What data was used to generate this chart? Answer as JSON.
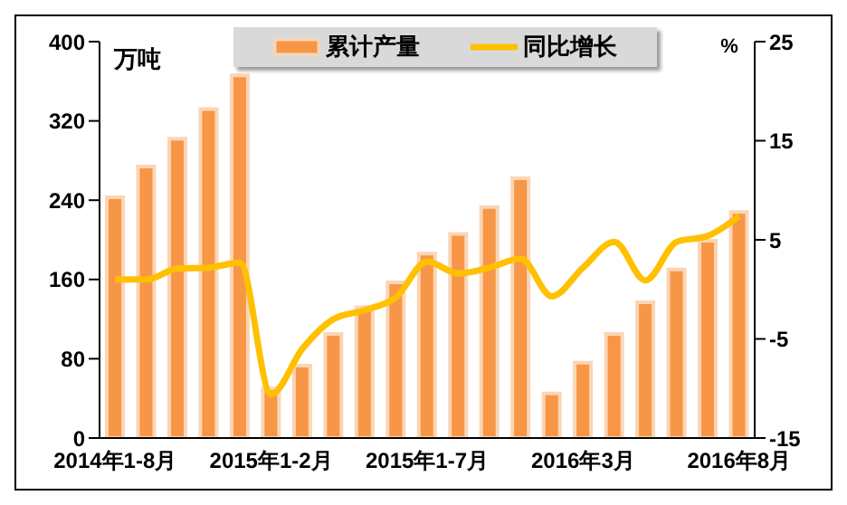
{
  "chart_data": {
    "type": "bar",
    "ylabel": "万吨",
    "y2label": "%",
    "categories": [
      "2014年1-8月",
      null,
      null,
      null,
      null,
      "2015年1-2月",
      null,
      null,
      null,
      null,
      "2015年1-7月",
      null,
      null,
      null,
      null,
      "2016年3月",
      null,
      null,
      null,
      null,
      "2016年8月"
    ],
    "series": [
      {
        "name": "累计产量",
        "color": "#f79646",
        "values": [
          243,
          274,
          302,
          332,
          366,
          50,
          73,
          105,
          132,
          157,
          186,
          206,
          233,
          262,
          45,
          76,
          105,
          137,
          170,
          199,
          228
        ]
      },
      {
        "name": "同比增长",
        "type": "line",
        "axis": "y2",
        "color": "#ffc000",
        "values": [
          1.0,
          1.0,
          2.1,
          2.2,
          2.7,
          -10.6,
          -6.0,
          -3.0,
          -2.1,
          -0.8,
          2.8,
          1.6,
          2.2,
          3.1,
          -0.7,
          2.2,
          4.8,
          0.9,
          4.8,
          5.4,
          7.4
        ]
      }
    ],
    "ylim": [
      0,
      400
    ],
    "yticks": [
      0,
      80,
      160,
      240,
      320,
      400
    ],
    "y2lim": [
      -15,
      25
    ],
    "y2ticks": [
      -15,
      -5,
      5,
      15,
      25
    ],
    "legend": "top",
    "marker": "none"
  }
}
